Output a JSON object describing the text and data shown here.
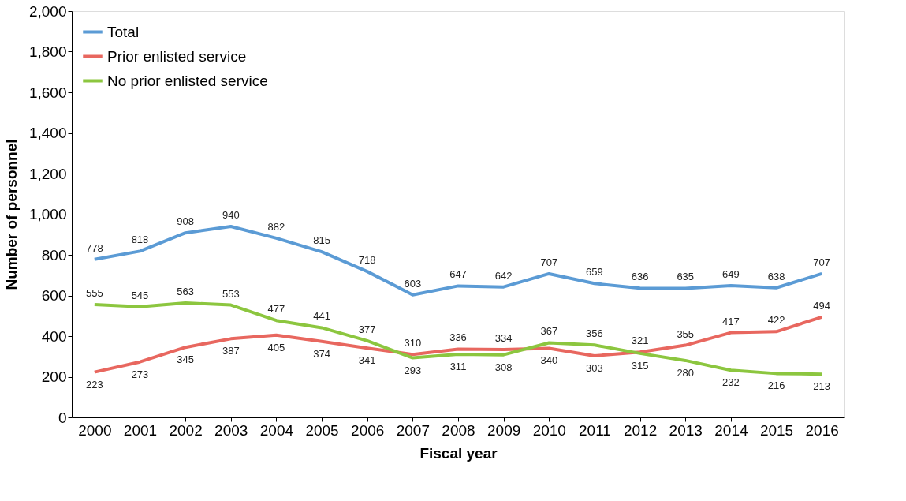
{
  "chart_data": {
    "type": "line",
    "xlabel": "Fiscal year",
    "ylabel": "Number of personnel",
    "categories": [
      "2000",
      "2001",
      "2002",
      "2003",
      "2004",
      "2005",
      "2006",
      "2007",
      "2008",
      "2009",
      "2010",
      "2011",
      "2012",
      "2013",
      "2014",
      "2015",
      "2016"
    ],
    "series": [
      {
        "name": "Total",
        "color": "#5b9bd5",
        "values": [
          778,
          818,
          908,
          940,
          882,
          815,
          718,
          603,
          647,
          642,
          707,
          659,
          636,
          635,
          649,
          638,
          707
        ]
      },
      {
        "name": "Prior enlisted service",
        "color": "#e8675f",
        "values": [
          223,
          273,
          345,
          387,
          405,
          374,
          341,
          310,
          336,
          334,
          340,
          303,
          321,
          355,
          417,
          422,
          494
        ]
      },
      {
        "name": "No prior enlisted service",
        "color": "#8cc63f",
        "values": [
          555,
          545,
          563,
          553,
          477,
          441,
          377,
          293,
          311,
          308,
          367,
          356,
          315,
          280,
          232,
          216,
          213
        ]
      }
    ],
    "ylim": [
      0,
      2000
    ],
    "yticks": [
      0,
      200,
      400,
      600,
      800,
      {
        "value": 1000,
        "label": "1,000"
      },
      {
        "value": 1200,
        "label": "1,200"
      },
      {
        "value": 1400,
        "label": "1,400"
      },
      {
        "value": 1600,
        "label": "1,600"
      },
      {
        "value": 1800,
        "label": "1,800"
      },
      {
        "value": 2000,
        "label": "2,000"
      }
    ],
    "grid": false,
    "legend": "top left",
    "marker": "none",
    "line_style": "solid",
    "data_labels": true
  }
}
